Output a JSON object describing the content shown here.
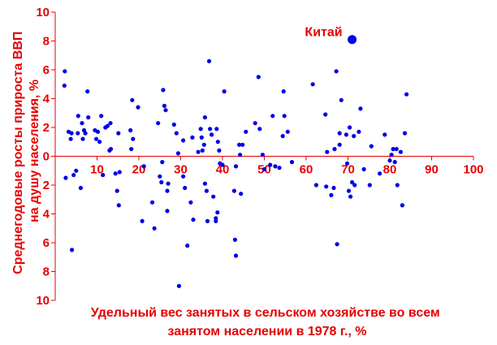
{
  "chart_data": {
    "type": "scatter",
    "title": "",
    "xlabel": [
      "Удельный вес занятых в сельском хозяйстве во всем",
      "занятом населении в 1978 г., %"
    ],
    "ylabel": [
      "Среднегодовые росты прироста ВВП",
      "на душу населения, %"
    ],
    "xlim": [
      0,
      100
    ],
    "ylim": [
      -10,
      10
    ],
    "x_ticks": [
      "10",
      "20",
      "30",
      "40",
      "50",
      "60",
      "70",
      "80",
      "90",
      "100"
    ],
    "y_ticks": [
      "10",
      "8",
      "6",
      "4",
      "2",
      "0",
      "2",
      "4",
      "6",
      "8",
      "10"
    ],
    "grid": false,
    "legend": "none",
    "marker_color": "#0000e6",
    "axis_color": "#e60000",
    "annotation": {
      "text": "Китай",
      "x": 71,
      "y": 8.1
    },
    "highlight": {
      "x": 71,
      "y": 8.1
    },
    "points": [
      [
        2.3,
        5.9
      ],
      [
        2.2,
        4.9
      ],
      [
        2.5,
        -1.5
      ],
      [
        3.2,
        1.7
      ],
      [
        3.7,
        1.2
      ],
      [
        3.9,
        1.6
      ],
      [
        4.0,
        -6.5
      ],
      [
        4.4,
        -1.3
      ],
      [
        5.0,
        -1.0
      ],
      [
        5.4,
        1.6
      ],
      [
        5.5,
        2.8
      ],
      [
        6.1,
        -2.2
      ],
      [
        6.4,
        2.3
      ],
      [
        6.6,
        1.2
      ],
      [
        6.9,
        1.8
      ],
      [
        7.2,
        1.6
      ],
      [
        7.7,
        4.5
      ],
      [
        7.9,
        2.7
      ],
      [
        9.5,
        1.8
      ],
      [
        9.8,
        1.2
      ],
      [
        10.2,
        1.7
      ],
      [
        10.6,
        1.0
      ],
      [
        11.0,
        2.8
      ],
      [
        11.4,
        -1.3
      ],
      [
        12.0,
        2.0
      ],
      [
        12.5,
        2.1
      ],
      [
        13.2,
        2.3
      ],
      [
        13.0,
        0.4
      ],
      [
        13.3,
        0.5
      ],
      [
        14.4,
        -1.2
      ],
      [
        14.8,
        -2.4
      ],
      [
        15.2,
        -3.4
      ],
      [
        15.4,
        -1.1
      ],
      [
        15.1,
        1.6
      ],
      [
        18.0,
        1.8
      ],
      [
        18.4,
        3.9
      ],
      [
        18.6,
        1.2
      ],
      [
        18.2,
        0.5
      ],
      [
        19.8,
        3.4
      ],
      [
        20.8,
        -4.5
      ],
      [
        21.2,
        -0.7
      ],
      [
        23.2,
        -3.2
      ],
      [
        23.7,
        -5.0
      ],
      [
        24.6,
        2.3
      ],
      [
        25.0,
        -1.4
      ],
      [
        25.4,
        -1.8
      ],
      [
        25.6,
        -0.4
      ],
      [
        25.8,
        4.6
      ],
      [
        26.1,
        3.5
      ],
      [
        26.4,
        3.2
      ],
      [
        26.8,
        -2.4
      ],
      [
        26.8,
        -3.8
      ],
      [
        27.0,
        -1.9
      ],
      [
        28.4,
        2.2
      ],
      [
        29.0,
        1.6
      ],
      [
        29.4,
        0.2
      ],
      [
        29.6,
        -9.0
      ],
      [
        30.6,
        1.1
      ],
      [
        30.6,
        -1.4
      ],
      [
        31.0,
        -2.2
      ],
      [
        31.6,
        -6.2
      ],
      [
        32.4,
        -3.2
      ],
      [
        32.8,
        1.3
      ],
      [
        33.0,
        -4.4
      ],
      [
        34.2,
        0.3
      ],
      [
        34.8,
        1.9
      ],
      [
        35.0,
        1.3
      ],
      [
        35.2,
        0.4
      ],
      [
        35.8,
        2.7
      ],
      [
        35.6,
        0.8
      ],
      [
        35.8,
        -1.9
      ],
      [
        36.2,
        -2.4
      ],
      [
        36.4,
        -4.5
      ],
      [
        36.8,
        6.6
      ],
      [
        37.0,
        1.9
      ],
      [
        37.4,
        1.5
      ],
      [
        37.8,
        -2.8
      ],
      [
        38.4,
        -4.3
      ],
      [
        38.8,
        -3.9
      ],
      [
        38.4,
        -4.5
      ],
      [
        38.6,
        1.9
      ],
      [
        38.9,
        1.0
      ],
      [
        39.2,
        0.4
      ],
      [
        39.4,
        -0.5
      ],
      [
        40.4,
        4.5
      ],
      [
        40.0,
        -0.6
      ],
      [
        42.8,
        -2.4
      ],
      [
        43.0,
        -5.8
      ],
      [
        43.2,
        -6.9
      ],
      [
        43.2,
        -0.7
      ],
      [
        44.0,
        0.8
      ],
      [
        44.2,
        0.1
      ],
      [
        44.4,
        -2.6
      ],
      [
        44.8,
        0.8
      ],
      [
        45.6,
        1.7
      ],
      [
        47.8,
        2.3
      ],
      [
        48.6,
        5.5
      ],
      [
        48.9,
        1.9
      ],
      [
        49.6,
        0.1
      ],
      [
        50.0,
        -0.9
      ],
      [
        51.4,
        -0.6
      ],
      [
        52.0,
        2.8
      ],
      [
        52.6,
        -0.7
      ],
      [
        53.6,
        -0.8
      ],
      [
        54.4,
        1.4
      ],
      [
        54.6,
        4.5
      ],
      [
        54.8,
        2.8
      ],
      [
        55.6,
        1.7
      ],
      [
        56.6,
        -0.4
      ],
      [
        61.6,
        5.0
      ],
      [
        62.4,
        -2.0
      ],
      [
        64.6,
        2.9
      ],
      [
        65.0,
        0.3
      ],
      [
        64.8,
        -2.1
      ],
      [
        66.0,
        -2.7
      ],
      [
        66.6,
        -2.2
      ],
      [
        66.8,
        0.5
      ],
      [
        67.2,
        5.9
      ],
      [
        67.4,
        -6.1
      ],
      [
        68.0,
        0.8
      ],
      [
        68.4,
        3.9
      ],
      [
        68.0,
        1.6
      ],
      [
        69.6,
        1.5
      ],
      [
        69.8,
        -0.5
      ],
      [
        70.2,
        -2.4
      ],
      [
        70.4,
        2.0
      ],
      [
        70.6,
        -2.8
      ],
      [
        71.0,
        -1.8
      ],
      [
        71.4,
        1.4
      ],
      [
        71.6,
        -2.0
      ],
      [
        72.6,
        1.7
      ],
      [
        73.0,
        3.3
      ],
      [
        73.8,
        -0.9
      ],
      [
        75.2,
        -2.0
      ],
      [
        75.6,
        0.7
      ],
      [
        77.6,
        -1.2
      ],
      [
        78.8,
        1.5
      ],
      [
        80.0,
        -0.3
      ],
      [
        80.4,
        0.1
      ],
      [
        80.8,
        0.5
      ],
      [
        81.2,
        -0.4
      ],
      [
        81.6,
        0.5
      ],
      [
        81.8,
        -2.0
      ],
      [
        82.6,
        0.3
      ],
      [
        83.0,
        -3.4
      ],
      [
        83.6,
        1.6
      ],
      [
        84.0,
        4.3
      ]
    ]
  }
}
